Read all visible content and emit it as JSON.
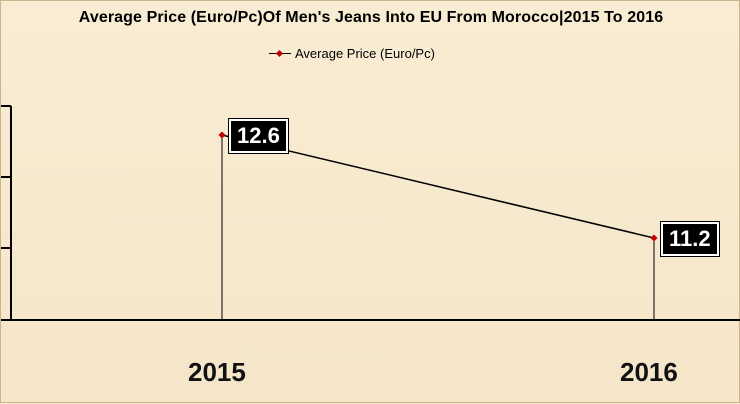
{
  "chart_data": {
    "type": "line",
    "title": "Average Price (Euro/Pc)Of Men's Jeans Into EU From Morocco|2015 To 2016",
    "categories": [
      "2015",
      "2016"
    ],
    "series": [
      {
        "name": "Average Price (Euro/Pc)",
        "values": [
          12.6,
          11.2
        ]
      }
    ],
    "data_labels": [
      "12.6",
      "11.2"
    ],
    "legend_position": "top",
    "grid": false,
    "colors": {
      "marker": "#c00000",
      "line": "#000000",
      "label_bg": "#000000",
      "label_text": "#ffffff"
    }
  }
}
